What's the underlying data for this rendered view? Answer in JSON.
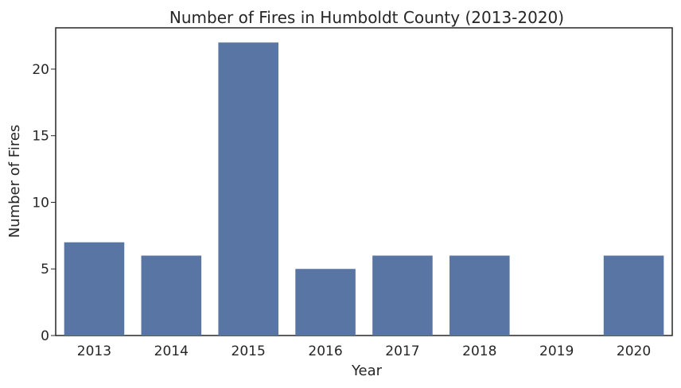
{
  "chart_data": {
    "type": "bar",
    "title": "Number of Fires in Humboldt County (2013-2020)",
    "xlabel": "Year",
    "ylabel": "Number of Fires",
    "categories": [
      "2013",
      "2014",
      "2015",
      "2016",
      "2017",
      "2018",
      "2019",
      "2020"
    ],
    "values": [
      7,
      6,
      22,
      5,
      6,
      6,
      0,
      6
    ],
    "ylim": [
      0,
      23.1
    ],
    "yticks": [
      0,
      5,
      10,
      15,
      20
    ],
    "grid": false,
    "bar_color": "#5975a4"
  }
}
